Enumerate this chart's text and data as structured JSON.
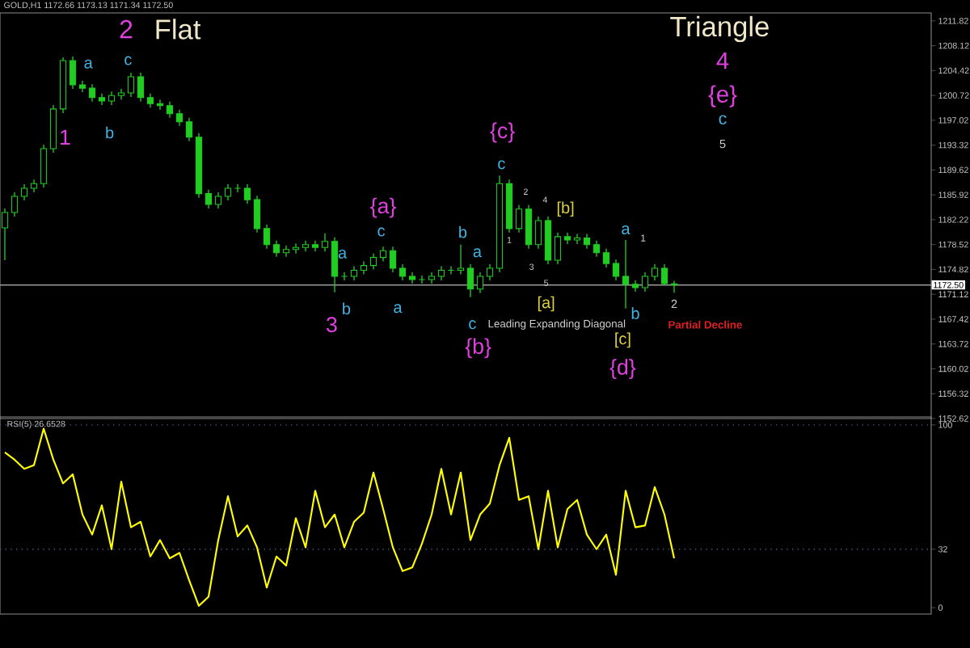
{
  "chart_data": [
    {
      "type": "candlestick",
      "title": "GOLD,H1 1172.66 1173.13 1171.34 1172.50",
      "categories": [
        null,
        null,
        null,
        null,
        null,
        null,
        null,
        null,
        null,
        null,
        null,
        null,
        null,
        null,
        null,
        null,
        null,
        null,
        null,
        null,
        null,
        null,
        null,
        null,
        null,
        null,
        null,
        null,
        null,
        null,
        null,
        null,
        null,
        null,
        null,
        null,
        null,
        null,
        null,
        null,
        null,
        null,
        null,
        null,
        null,
        null,
        null,
        null,
        null,
        null,
        null,
        null,
        null,
        null,
        null,
        null,
        null,
        null,
        null,
        null,
        null,
        null,
        null,
        null,
        null,
        null,
        null,
        null,
        null,
        null,
        null,
        null,
        null,
        null,
        null,
        null,
        null,
        null,
        null,
        null,
        null,
        null,
        null,
        null,
        null,
        null,
        null,
        null,
        null,
        null,
        null,
        null,
        null,
        null,
        null,
        null
      ],
      "ohlc": [
        [
          1181.0,
          1183.9,
          1176.2,
          1183.3
        ],
        [
          1183.3,
          1186.3,
          1182.7,
          1185.7
        ],
        [
          1185.7,
          1187.5,
          1185.1,
          1186.9
        ],
        [
          1186.9,
          1188.2,
          1186.3,
          1187.6
        ],
        [
          1187.6,
          1193.4,
          1187.0,
          1192.8
        ],
        [
          1192.8,
          1199.3,
          1192.2,
          1198.7
        ],
        [
          1198.7,
          1206.4,
          1198.1,
          1205.9
        ],
        [
          1205.9,
          1206.5,
          1201.7,
          1202.3
        ],
        [
          1202.3,
          1202.9,
          1201.2,
          1201.8
        ],
        [
          1201.8,
          1202.4,
          1199.8,
          1200.4
        ],
        [
          1200.4,
          1201.0,
          1199.3,
          1199.9
        ],
        [
          1199.9,
          1201.3,
          1199.3,
          1200.7
        ],
        [
          1200.7,
          1201.7,
          1200.1,
          1201.1
        ],
        [
          1201.1,
          1204.1,
          1200.5,
          1203.5
        ],
        [
          1203.5,
          1204.1,
          1199.8,
          1200.4
        ],
        [
          1200.4,
          1201.0,
          1198.9,
          1199.5
        ],
        [
          1199.5,
          1200.1,
          1198.6,
          1199.2
        ],
        [
          1199.2,
          1199.8,
          1197.4,
          1198.0
        ],
        [
          1198.0,
          1198.6,
          1196.2,
          1196.8
        ],
        [
          1196.8,
          1197.4,
          1193.9,
          1194.5
        ],
        [
          1194.5,
          1195.1,
          1185.5,
          1186.1
        ],
        [
          1186.1,
          1186.7,
          1183.9,
          1184.5
        ],
        [
          1184.5,
          1186.3,
          1183.9,
          1185.7
        ],
        [
          1185.7,
          1187.5,
          1185.1,
          1186.9
        ],
        [
          1186.9,
          1187.5,
          1186.3,
          1186.9
        ],
        [
          1186.9,
          1187.5,
          1184.6,
          1185.2
        ],
        [
          1185.2,
          1185.8,
          1180.3,
          1180.9
        ],
        [
          1180.9,
          1181.5,
          1177.9,
          1178.5
        ],
        [
          1178.5,
          1179.1,
          1176.7,
          1177.3
        ],
        [
          1177.3,
          1178.4,
          1176.7,
          1177.8
        ],
        [
          1177.8,
          1178.7,
          1177.2,
          1178.1
        ],
        [
          1178.1,
          1179.1,
          1177.5,
          1178.5
        ],
        [
          1178.5,
          1179.1,
          1177.5,
          1178.1
        ],
        [
          1178.1,
          1180.2,
          1177.5,
          1179.0
        ],
        [
          1179.0,
          1179.6,
          1171.4,
          1173.8
        ],
        [
          1173.8,
          1174.4,
          1173.2,
          1173.8
        ],
        [
          1173.8,
          1175.3,
          1173.2,
          1174.7
        ],
        [
          1174.7,
          1176.0,
          1174.1,
          1175.4
        ],
        [
          1175.4,
          1177.2,
          1174.8,
          1176.6
        ],
        [
          1176.6,
          1178.2,
          1176.0,
          1177.6
        ],
        [
          1177.6,
          1178.2,
          1174.4,
          1175.0
        ],
        [
          1175.0,
          1175.6,
          1173.2,
          1173.8
        ],
        [
          1173.8,
          1174.4,
          1172.7,
          1173.3
        ],
        [
          1173.3,
          1173.9,
          1172.7,
          1173.3
        ],
        [
          1173.3,
          1174.4,
          1172.7,
          1173.8
        ],
        [
          1173.8,
          1175.3,
          1173.2,
          1174.7
        ],
        [
          1174.7,
          1175.3,
          1174.1,
          1174.7
        ],
        [
          1174.7,
          1178.5,
          1174.1,
          1175.0
        ],
        [
          1175.0,
          1175.6,
          1170.7,
          1171.9
        ],
        [
          1171.9,
          1174.4,
          1171.3,
          1173.8
        ],
        [
          1173.8,
          1175.6,
          1173.2,
          1175.0
        ],
        [
          1175.0,
          1188.8,
          1174.4,
          1187.6
        ],
        [
          1187.6,
          1188.2,
          1180.3,
          1180.9
        ],
        [
          1180.9,
          1184.4,
          1180.3,
          1183.8
        ],
        [
          1183.8,
          1184.4,
          1177.9,
          1178.5
        ],
        [
          1178.5,
          1182.7,
          1177.9,
          1182.1
        ],
        [
          1182.1,
          1182.7,
          1175.6,
          1176.2
        ],
        [
          1176.2,
          1180.3,
          1175.6,
          1179.7
        ],
        [
          1179.7,
          1180.3,
          1178.6,
          1179.2
        ],
        [
          1179.2,
          1180.1,
          1178.6,
          1179.5
        ],
        [
          1179.5,
          1180.1,
          1177.9,
          1178.5
        ],
        [
          1178.5,
          1179.1,
          1176.7,
          1177.3
        ],
        [
          1177.3,
          1177.9,
          1175.1,
          1175.7
        ],
        [
          1175.7,
          1176.3,
          1173.2,
          1173.8
        ],
        [
          1173.8,
          1179.2,
          1169.0,
          1172.6
        ],
        [
          1172.6,
          1173.2,
          1171.5,
          1172.1
        ],
        [
          1172.1,
          1174.4,
          1171.5,
          1173.8
        ],
        [
          1173.8,
          1175.6,
          1173.2,
          1175.0
        ],
        [
          1175.0,
          1175.6,
          1172.4,
          1172.7
        ],
        [
          1172.66,
          1173.13,
          1171.34,
          1172.5
        ],
        null,
        null,
        null,
        null,
        null,
        null,
        null,
        null,
        null,
        null,
        null,
        null,
        null,
        null,
        null,
        null,
        null,
        null,
        null,
        null,
        null,
        null,
        null,
        null,
        null,
        null
      ],
      "color": "#22cc22",
      "ylim": [
        1152.62,
        1213.0
      ],
      "yticks": [
        1152.62,
        1156.32,
        1160.02,
        1163.72,
        1167.42,
        1171.12,
        1174.82,
        1178.52,
        1182.22,
        1185.92,
        1189.62,
        1193.32,
        1197.02,
        1200.72,
        1204.42,
        1208.12,
        1211.82
      ],
      "ref_lines": [
        {
          "axis": "y",
          "value": 1172.5,
          "label": "1172.50",
          "color": "#9a9a9a"
        }
      ],
      "annotations": [
        "2",
        "Flat",
        "1",
        "a",
        "c",
        "b",
        "3",
        "a",
        "b",
        "c",
        "a",
        "{a}",
        "b",
        "a",
        "c",
        "{b}",
        "{c}",
        "c",
        "[b]",
        "[a]",
        "Leading Expanding Diagonal",
        "[c]",
        "{d}",
        "a",
        "b",
        "1",
        "2",
        "Partial Decline",
        "Triangle",
        "4",
        "{e}",
        "c",
        "5",
        "2",
        "4",
        "1",
        "3",
        "5"
      ]
    },
    {
      "type": "line",
      "title": "RSI(5) 26.6528",
      "categories": [
        null,
        null,
        null,
        null,
        null,
        null,
        null,
        null,
        null,
        null,
        null,
        null,
        null,
        null,
        null,
        null,
        null,
        null,
        null,
        null,
        null,
        null,
        null,
        null,
        null,
        null,
        null,
        null,
        null,
        null,
        null,
        null,
        null,
        null,
        null,
        null,
        null,
        null,
        null,
        null,
        null,
        null,
        null,
        null,
        null,
        null,
        null,
        null,
        null,
        null,
        null,
        null,
        null,
        null,
        null,
        null,
        null,
        null,
        null,
        null,
        null,
        null,
        null,
        null,
        null,
        null,
        null,
        null,
        null,
        null,
        null,
        null,
        null,
        null,
        null,
        null,
        null,
        null,
        null,
        null,
        null,
        null,
        null,
        null,
        null,
        null,
        null,
        null,
        null,
        null,
        null,
        null,
        null,
        null,
        null,
        null
      ],
      "values": [
        85,
        81,
        76,
        78,
        98,
        81,
        68,
        73,
        51,
        40,
        56,
        32,
        69,
        44,
        47,
        28,
        37,
        27,
        30,
        15,
        1,
        6,
        37,
        61,
        39,
        45,
        33,
        11,
        28,
        23,
        49,
        33,
        64,
        44,
        51,
        33,
        47,
        52,
        74,
        54,
        33,
        20,
        22,
        35,
        51,
        76,
        51,
        74,
        37,
        51,
        57,
        78,
        93,
        59,
        61,
        32,
        64,
        33,
        54,
        59,
        40,
        32,
        40,
        18,
        64,
        44,
        45,
        66,
        51,
        27,
        null,
        null,
        null,
        null,
        null,
        null,
        null,
        null,
        null,
        null,
        null,
        null,
        null,
        null,
        null,
        null,
        null,
        null,
        null,
        null,
        null,
        null,
        null,
        null,
        null,
        null
      ],
      "color": "#ffff00",
      "ylim": [
        -3.5,
        104.4
      ],
      "yticks": [
        0,
        32,
        100
      ],
      "ref_lines": [
        {
          "axis": "y",
          "value": 32,
          "color": "#4a5a8a",
          "line_style": "dotted"
        },
        {
          "axis": "y",
          "value": 100,
          "color": "#4a5a8a",
          "line_style": "dotted"
        }
      ]
    }
  ]
}
